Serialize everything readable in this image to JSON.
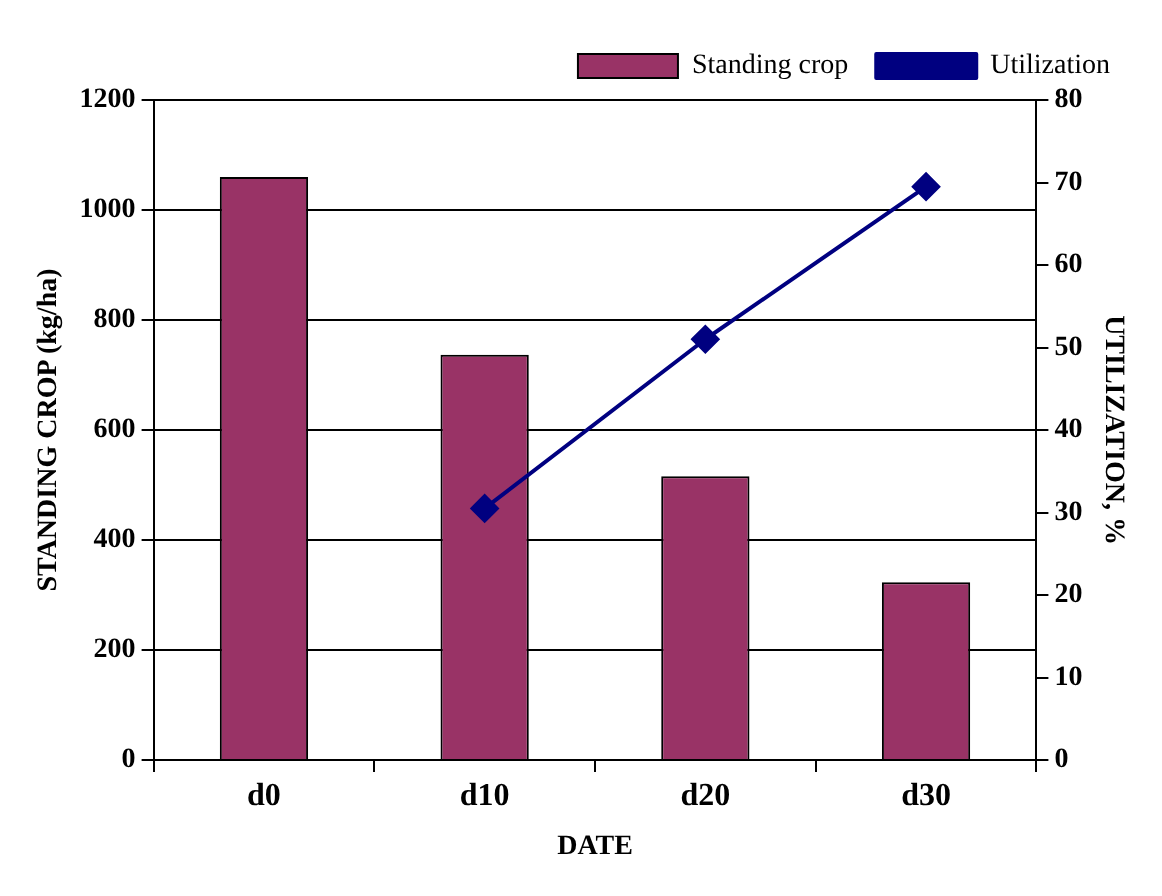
{
  "chart_data": {
    "type": "bar",
    "xlabel": "DATE",
    "ylabel": "STANDING CROP (kg/ha)",
    "y2label": "UTILIZATION, %",
    "categories": [
      "d0",
      "d10",
      "d20",
      "d30"
    ],
    "series": [
      {
        "name": "Standing crop",
        "color": "#993366",
        "values": [
          1060,
          737,
          516,
          323
        ]
      },
      {
        "name": "Utilization",
        "type": "line",
        "axis": "y2",
        "color": "#000080",
        "marker": "diamond",
        "values": [
          null,
          30.5,
          51,
          69.5
        ]
      }
    ],
    "ylim": [
      0,
      1200
    ],
    "yticks": [
      0,
      200,
      400,
      600,
      800,
      1000,
      1200
    ],
    "y2lim": [
      0,
      80
    ],
    "y2ticks": [
      0,
      10,
      20,
      30,
      40,
      50,
      60,
      70,
      80
    ],
    "grid": "y",
    "legend": "top"
  }
}
